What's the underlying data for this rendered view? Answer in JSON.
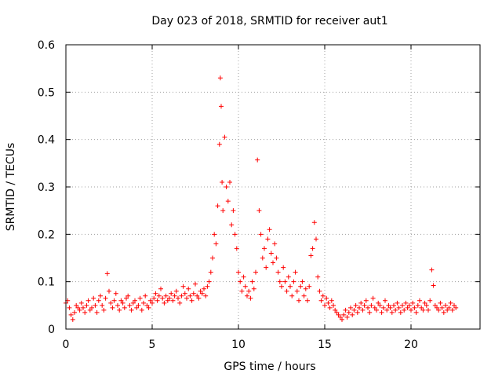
{
  "chart_data": {
    "type": "scatter",
    "title": "Day 023 of 2018, SRMTID for receiver aut1",
    "xlabel": "GPS time / hours",
    "ylabel": "SRMTID / TECUs",
    "xlim": [
      0,
      24
    ],
    "ylim": [
      0,
      0.6
    ],
    "xticks": [
      0,
      5,
      10,
      15,
      20
    ],
    "yticks": [
      0,
      0.1,
      0.2,
      0.3,
      0.4,
      0.5,
      0.6
    ],
    "xtick_labels": [
      "0",
      "5",
      "10",
      "15",
      "20"
    ],
    "ytick_labels": [
      "0",
      "0.1",
      "0.2",
      "0.3",
      "0.4",
      "0.5",
      "0.6"
    ],
    "grid": true,
    "marker": "+",
    "color": "#ff0000",
    "series": [
      {
        "name": "aut1",
        "points": [
          [
            0.0,
            0.055
          ],
          [
            0.1,
            0.06
          ],
          [
            0.2,
            0.045
          ],
          [
            0.3,
            0.03
          ],
          [
            0.4,
            0.02
          ],
          [
            0.5,
            0.035
          ],
          [
            0.6,
            0.05
          ],
          [
            0.7,
            0.045
          ],
          [
            0.8,
            0.04
          ],
          [
            0.9,
            0.055
          ],
          [
            1.0,
            0.045
          ],
          [
            1.1,
            0.035
          ],
          [
            1.2,
            0.05
          ],
          [
            1.3,
            0.06
          ],
          [
            1.4,
            0.04
          ],
          [
            1.5,
            0.045
          ],
          [
            1.6,
            0.065
          ],
          [
            1.7,
            0.05
          ],
          [
            1.8,
            0.035
          ],
          [
            1.9,
            0.06
          ],
          [
            2.0,
            0.07
          ],
          [
            2.1,
            0.05
          ],
          [
            2.2,
            0.04
          ],
          [
            2.3,
            0.065
          ],
          [
            2.4,
            0.117
          ],
          [
            2.5,
            0.08
          ],
          [
            2.6,
            0.055
          ],
          [
            2.7,
            0.045
          ],
          [
            2.8,
            0.06
          ],
          [
            2.9,
            0.075
          ],
          [
            3.0,
            0.05
          ],
          [
            3.1,
            0.04
          ],
          [
            3.2,
            0.06
          ],
          [
            3.3,
            0.055
          ],
          [
            3.4,
            0.045
          ],
          [
            3.5,
            0.065
          ],
          [
            3.6,
            0.07
          ],
          [
            3.7,
            0.05
          ],
          [
            3.8,
            0.04
          ],
          [
            3.9,
            0.055
          ],
          [
            4.0,
            0.06
          ],
          [
            4.1,
            0.045
          ],
          [
            4.2,
            0.05
          ],
          [
            4.3,
            0.065
          ],
          [
            4.4,
            0.04
          ],
          [
            4.5,
            0.055
          ],
          [
            4.6,
            0.07
          ],
          [
            4.7,
            0.05
          ],
          [
            4.8,
            0.045
          ],
          [
            4.9,
            0.06
          ],
          [
            5.0,
            0.055
          ],
          [
            5.1,
            0.065
          ],
          [
            5.2,
            0.075
          ],
          [
            5.3,
            0.06
          ],
          [
            5.4,
            0.07
          ],
          [
            5.5,
            0.085
          ],
          [
            5.6,
            0.065
          ],
          [
            5.7,
            0.055
          ],
          [
            5.8,
            0.07
          ],
          [
            5.9,
            0.06
          ],
          [
            6.0,
            0.065
          ],
          [
            6.1,
            0.075
          ],
          [
            6.2,
            0.06
          ],
          [
            6.3,
            0.07
          ],
          [
            6.4,
            0.08
          ],
          [
            6.5,
            0.065
          ],
          [
            6.6,
            0.055
          ],
          [
            6.7,
            0.07
          ],
          [
            6.8,
            0.09
          ],
          [
            6.9,
            0.075
          ],
          [
            7.0,
            0.065
          ],
          [
            7.1,
            0.085
          ],
          [
            7.2,
            0.07
          ],
          [
            7.3,
            0.06
          ],
          [
            7.4,
            0.075
          ],
          [
            7.5,
            0.095
          ],
          [
            7.6,
            0.07
          ],
          [
            7.7,
            0.065
          ],
          [
            7.8,
            0.08
          ],
          [
            7.9,
            0.075
          ],
          [
            8.0,
            0.085
          ],
          [
            8.1,
            0.07
          ],
          [
            8.2,
            0.09
          ],
          [
            8.3,
            0.1
          ],
          [
            8.4,
            0.12
          ],
          [
            8.5,
            0.15
          ],
          [
            8.6,
            0.2
          ],
          [
            8.7,
            0.18
          ],
          [
            8.8,
            0.26
          ],
          [
            8.9,
            0.39
          ],
          [
            8.95,
            0.53
          ],
          [
            9.0,
            0.47
          ],
          [
            9.05,
            0.31
          ],
          [
            9.1,
            0.25
          ],
          [
            9.2,
            0.405
          ],
          [
            9.3,
            0.3
          ],
          [
            9.4,
            0.27
          ],
          [
            9.5,
            0.31
          ],
          [
            9.6,
            0.22
          ],
          [
            9.7,
            0.25
          ],
          [
            9.8,
            0.2
          ],
          [
            9.9,
            0.17
          ],
          [
            10.0,
            0.12
          ],
          [
            10.1,
            0.1
          ],
          [
            10.2,
            0.08
          ],
          [
            10.3,
            0.11
          ],
          [
            10.4,
            0.09
          ],
          [
            10.5,
            0.07
          ],
          [
            10.6,
            0.08
          ],
          [
            10.7,
            0.065
          ],
          [
            10.8,
            0.1
          ],
          [
            10.9,
            0.085
          ],
          [
            11.0,
            0.12
          ],
          [
            11.1,
            0.357
          ],
          [
            11.2,
            0.25
          ],
          [
            11.3,
            0.2
          ],
          [
            11.4,
            0.15
          ],
          [
            11.5,
            0.17
          ],
          [
            11.6,
            0.13
          ],
          [
            11.7,
            0.19
          ],
          [
            11.8,
            0.21
          ],
          [
            11.9,
            0.16
          ],
          [
            12.0,
            0.14
          ],
          [
            12.1,
            0.18
          ],
          [
            12.2,
            0.15
          ],
          [
            12.3,
            0.12
          ],
          [
            12.4,
            0.1
          ],
          [
            12.5,
            0.09
          ],
          [
            12.6,
            0.13
          ],
          [
            12.7,
            0.1
          ],
          [
            12.8,
            0.08
          ],
          [
            12.9,
            0.11
          ],
          [
            13.0,
            0.09
          ],
          [
            13.1,
            0.07
          ],
          [
            13.2,
            0.1
          ],
          [
            13.3,
            0.12
          ],
          [
            13.4,
            0.08
          ],
          [
            13.5,
            0.06
          ],
          [
            13.6,
            0.09
          ],
          [
            13.7,
            0.1
          ],
          [
            13.8,
            0.07
          ],
          [
            13.9,
            0.085
          ],
          [
            14.0,
            0.06
          ],
          [
            14.1,
            0.09
          ],
          [
            14.2,
            0.155
          ],
          [
            14.3,
            0.17
          ],
          [
            14.4,
            0.225
          ],
          [
            14.5,
            0.19
          ],
          [
            14.6,
            0.11
          ],
          [
            14.7,
            0.08
          ],
          [
            14.8,
            0.06
          ],
          [
            14.9,
            0.07
          ],
          [
            15.0,
            0.05
          ],
          [
            15.1,
            0.065
          ],
          [
            15.2,
            0.055
          ],
          [
            15.3,
            0.045
          ],
          [
            15.4,
            0.06
          ],
          [
            15.5,
            0.05
          ],
          [
            15.6,
            0.04
          ],
          [
            15.7,
            0.035
          ],
          [
            15.8,
            0.03
          ],
          [
            15.9,
            0.025
          ],
          [
            16.0,
            0.02
          ],
          [
            16.1,
            0.03
          ],
          [
            16.2,
            0.04
          ],
          [
            16.3,
            0.025
          ],
          [
            16.4,
            0.035
          ],
          [
            16.5,
            0.045
          ],
          [
            16.6,
            0.03
          ],
          [
            16.7,
            0.04
          ],
          [
            16.8,
            0.05
          ],
          [
            16.9,
            0.035
          ],
          [
            17.0,
            0.045
          ],
          [
            17.1,
            0.055
          ],
          [
            17.2,
            0.04
          ],
          [
            17.3,
            0.05
          ],
          [
            17.4,
            0.06
          ],
          [
            17.5,
            0.045
          ],
          [
            17.6,
            0.035
          ],
          [
            17.7,
            0.05
          ],
          [
            17.8,
            0.065
          ],
          [
            17.9,
            0.045
          ],
          [
            18.0,
            0.04
          ],
          [
            18.1,
            0.055
          ],
          [
            18.2,
            0.05
          ],
          [
            18.3,
            0.035
          ],
          [
            18.4,
            0.045
          ],
          [
            18.5,
            0.06
          ],
          [
            18.6,
            0.04
          ],
          [
            18.7,
            0.05
          ],
          [
            18.8,
            0.045
          ],
          [
            18.9,
            0.035
          ],
          [
            19.0,
            0.05
          ],
          [
            19.1,
            0.04
          ],
          [
            19.2,
            0.055
          ],
          [
            19.3,
            0.045
          ],
          [
            19.4,
            0.035
          ],
          [
            19.5,
            0.05
          ],
          [
            19.6,
            0.04
          ],
          [
            19.7,
            0.055
          ],
          [
            19.8,
            0.045
          ],
          [
            19.9,
            0.05
          ],
          [
            20.0,
            0.04
          ],
          [
            20.1,
            0.055
          ],
          [
            20.2,
            0.045
          ],
          [
            20.3,
            0.035
          ],
          [
            20.4,
            0.05
          ],
          [
            20.5,
            0.06
          ],
          [
            20.6,
            0.045
          ],
          [
            20.7,
            0.04
          ],
          [
            20.8,
            0.055
          ],
          [
            20.9,
            0.05
          ],
          [
            21.0,
            0.04
          ],
          [
            21.1,
            0.06
          ],
          [
            21.2,
            0.125
          ],
          [
            21.3,
            0.092
          ],
          [
            21.4,
            0.05
          ],
          [
            21.5,
            0.045
          ],
          [
            21.6,
            0.04
          ],
          [
            21.7,
            0.055
          ],
          [
            21.8,
            0.045
          ],
          [
            21.9,
            0.035
          ],
          [
            22.0,
            0.05
          ],
          [
            22.1,
            0.04
          ],
          [
            22.2,
            0.045
          ],
          [
            22.3,
            0.055
          ],
          [
            22.4,
            0.04
          ],
          [
            22.5,
            0.05
          ],
          [
            22.6,
            0.045
          ]
        ]
      }
    ]
  }
}
